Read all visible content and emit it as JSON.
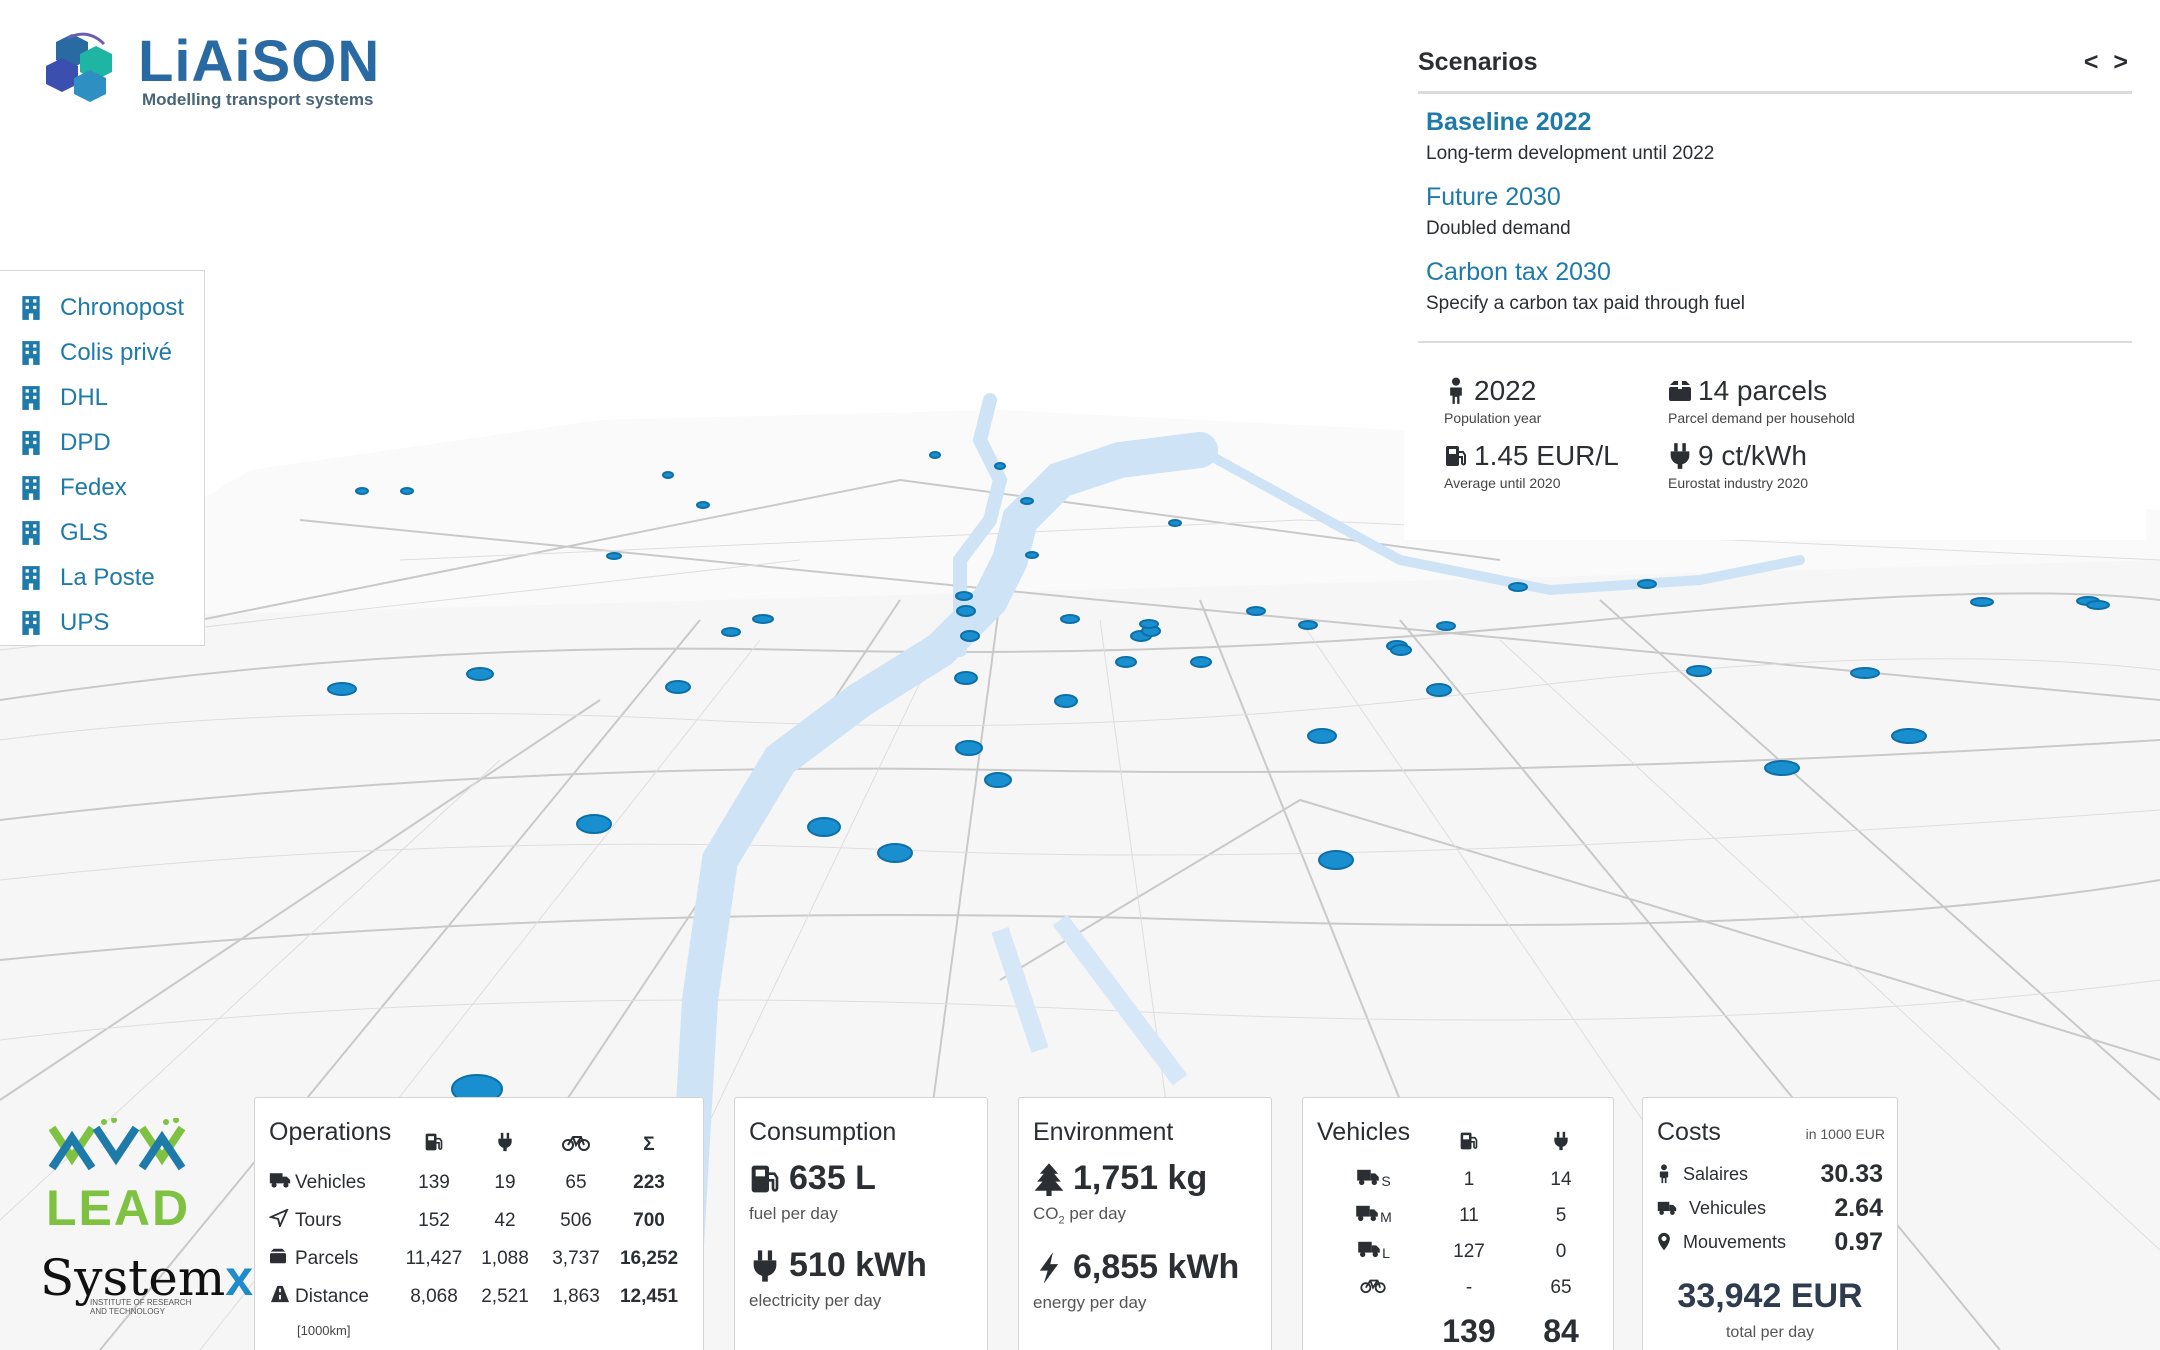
{
  "logo": {
    "title": "LiAiSON",
    "subtitle": "Modelling transport systems"
  },
  "carriers": [
    "Chronopost",
    "Colis privé",
    "DHL",
    "DPD",
    "Fedex",
    "GLS",
    "La Poste",
    "UPS"
  ],
  "scenarios": {
    "title": "Scenarios",
    "nav": "< >",
    "items": [
      {
        "name": "Baseline 2022",
        "desc": "Long-term development until 2022",
        "active": true
      },
      {
        "name": "Future 2030",
        "desc": "Doubled demand",
        "active": false
      },
      {
        "name": "Carbon tax 2030",
        "desc": "Specify a carbon tax paid through fuel",
        "active": false
      }
    ],
    "params": {
      "population": {
        "value": "2022",
        "label": "Population year",
        "icon": "person-icon"
      },
      "parcels": {
        "value": "14 parcels",
        "label": "Parcel demand per household",
        "icon": "box-icon"
      },
      "fuel": {
        "value": "1.45 EUR/L",
        "label": "Average until 2020",
        "icon": "fuel-icon"
      },
      "electricity": {
        "value": "9 ct/kWh",
        "label": "Eurostat industry 2020",
        "icon": "plug-icon"
      }
    }
  },
  "operations": {
    "title": "Operations",
    "header_sum": "Σ",
    "rows": [
      {
        "label": "Vehicles",
        "icon": "truck-icon",
        "fuel": "139",
        "elec": "19",
        "bike": "65",
        "sum": "223"
      },
      {
        "label": "Tours",
        "icon": "route-icon",
        "fuel": "152",
        "elec": "42",
        "bike": "506",
        "sum": "700"
      },
      {
        "label": "Parcels",
        "icon": "box-icon",
        "fuel": "11,427",
        "elec": "1,088",
        "bike": "3,737",
        "sum": "16,252"
      },
      {
        "label": "Distance",
        "icon": "road-icon",
        "fuel": "8,068",
        "elec": "2,521",
        "bike": "1,863",
        "sum": "12,451"
      }
    ],
    "unit": "[1000km]"
  },
  "consumption": {
    "title": "Consumption",
    "fuel": {
      "value": "635 L",
      "label": "fuel per day"
    },
    "electricity": {
      "value": "510 kWh",
      "label": "electricity per day"
    }
  },
  "environment": {
    "title": "Environment",
    "co2": {
      "value": "1,751 kg",
      "label_pre": "CO",
      "label_sub": "2",
      "label_post": " per day"
    },
    "energy": {
      "value": "6,855 kWh",
      "label": "energy per day"
    }
  },
  "vehicles": {
    "title": "Vehicles",
    "rows": [
      {
        "size": "S",
        "fuel": "1",
        "elec": "14"
      },
      {
        "size": "M",
        "fuel": "11",
        "elec": "5"
      },
      {
        "size": "L",
        "fuel": "127",
        "elec": "0"
      },
      {
        "size": "",
        "fuel": "-",
        "elec": "65"
      }
    ],
    "totals": {
      "fuel": "139",
      "elec": "84"
    }
  },
  "costs": {
    "title": "Costs",
    "unit": "in 1000 EUR",
    "rows": [
      {
        "label": "Salaires",
        "value": "30.33",
        "icon": "person-icon"
      },
      {
        "label": "Vehicules",
        "value": "2.64",
        "icon": "truck-icon"
      },
      {
        "label": "Mouvements",
        "value": "0.97",
        "icon": "pin-icon"
      }
    ],
    "total": "33,942 EUR",
    "total_label": "total per day"
  },
  "sponsors": {
    "lead": "LEAD",
    "systemx": "System",
    "systemx_x": "x",
    "systemx_sub": "INSTITUTE OF RESEARCH AND TECHNOLOGY"
  },
  "colors": {
    "accent": "#1e7aa8",
    "marker": "#1a8fd0",
    "river": "#cfe3f7",
    "lead_green": "#7fc241"
  }
}
